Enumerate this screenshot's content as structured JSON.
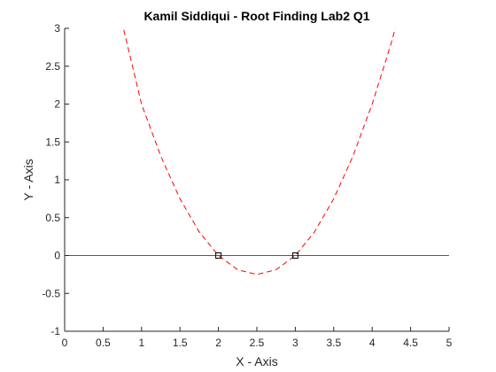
{
  "chart_data": {
    "type": "line",
    "title": "Kamil Siddiqui - Root Finding Lab2 Q1",
    "xlabel": "X - Axis",
    "ylabel": "Y - Axis",
    "xlim": [
      0,
      5
    ],
    "ylim": [
      -1,
      3
    ],
    "xticks": [
      0,
      0.5,
      1,
      1.5,
      2,
      2.5,
      3,
      3.5,
      4,
      4.5,
      5
    ],
    "xtick_labels": [
      "0",
      "0.5",
      "1",
      "1.5",
      "2",
      "2.5",
      "3",
      "3.5",
      "4",
      "4.5",
      "5"
    ],
    "yticks": [
      -1,
      -0.5,
      0,
      0.5,
      1,
      1.5,
      2,
      2.5,
      3
    ],
    "ytick_labels": [
      "-1",
      "-0.5",
      "0",
      "0.5",
      "1",
      "1.5",
      "2",
      "2.5",
      "3"
    ],
    "grid": false,
    "legend": "none",
    "series": [
      {
        "style": "dashed",
        "color": "#ff0000",
        "x": [
          0.5,
          0.75,
          1.0,
          1.25,
          1.5,
          1.75,
          2.0,
          2.25,
          2.5,
          2.75,
          3.0,
          3.25,
          3.5,
          3.75,
          4.0,
          4.25,
          4.5
        ],
        "y": [
          3.75,
          3.0625,
          2.0,
          1.3125,
          0.75,
          0.3125,
          0.0,
          -0.1875,
          -0.25,
          -0.1875,
          0.0,
          0.3125,
          0.75,
          1.3125,
          2.0,
          2.8125,
          3.75
        ]
      },
      {
        "style": "solid",
        "color": "#0072bd",
        "x": [
          0,
          5
        ],
        "y": [
          0,
          0
        ]
      }
    ],
    "markers": {
      "shape": "square",
      "color": "#000000",
      "points": [
        {
          "x": 2,
          "y": 0
        },
        {
          "x": 3,
          "y": 0
        }
      ]
    }
  }
}
